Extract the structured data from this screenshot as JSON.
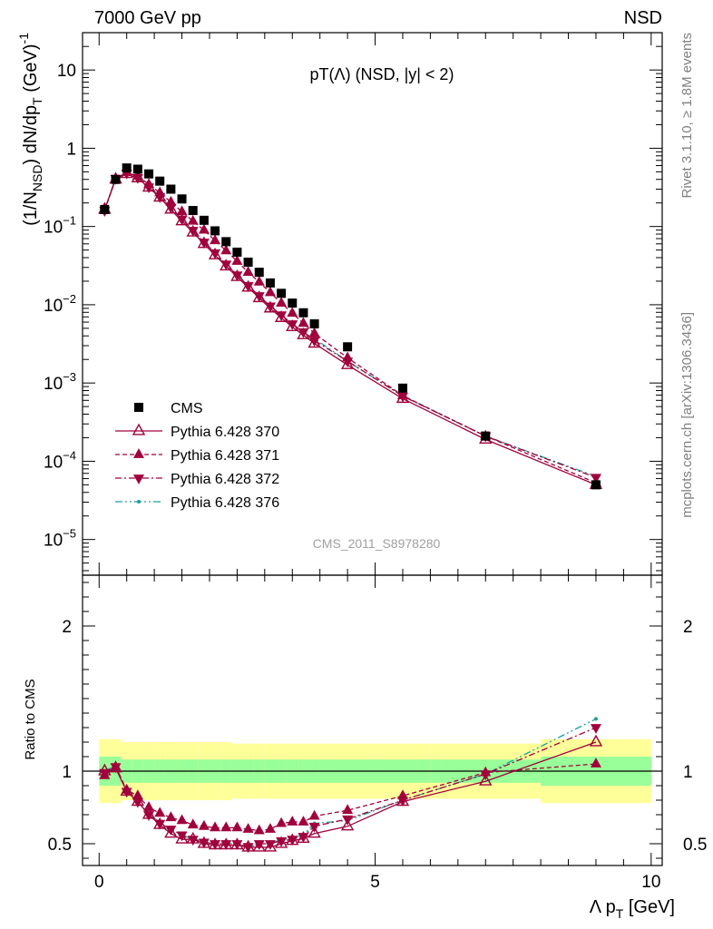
{
  "header": {
    "left": "7000 GeV pp",
    "right": "NSD"
  },
  "side_labels": {
    "rivet": "Rivet 3.1.10, ≥ 1.8M events",
    "mcplots": "mcplots.cern.ch [arXiv:1306.3436]"
  },
  "watermark": "CMS_2011_S8978280",
  "colors": {
    "cms": "#000000",
    "mc": "#a0003c",
    "mc376": "#1aa19a",
    "band_stat": "#99ff99",
    "band_total": "#ffff99"
  },
  "chart_data": [
    {
      "type": "scatter",
      "panel": "main",
      "title": "pT(Λ) (NSD, |y| < 2)",
      "ylabel_parts": {
        "base": "(1/N",
        "sub": "NSD",
        "mid": ") dN/dp",
        "sub2": "T",
        "unit": " (GeV)",
        "sup": "-1"
      },
      "yscale": "log",
      "ylim": [
        3.5e-06,
        30
      ],
      "xlim": [
        -0.3,
        10.2
      ],
      "yticks": [
        {
          "value": 10,
          "label": "10"
        },
        {
          "value": 1,
          "label": "1"
        },
        {
          "value": 0.1,
          "label": "10",
          "sup": "−1"
        },
        {
          "value": 0.01,
          "label": "10",
          "sup": "−2"
        },
        {
          "value": 0.001,
          "label": "10",
          "sup": "−3"
        },
        {
          "value": 0.0001,
          "label": "10",
          "sup": "−4"
        },
        {
          "value": 1e-05,
          "label": "10",
          "sup": "−5"
        }
      ],
      "series": [
        {
          "name": "CMS",
          "marker": "square",
          "x": [
            0.1,
            0.3,
            0.5,
            0.7,
            0.9,
            1.1,
            1.3,
            1.5,
            1.7,
            1.9,
            2.1,
            2.3,
            2.5,
            2.7,
            2.9,
            3.1,
            3.3,
            3.5,
            3.7,
            3.9,
            4.5,
            5.5,
            7.0,
            9.0
          ],
          "y": [
            0.165,
            0.4,
            0.56,
            0.54,
            0.47,
            0.38,
            0.3,
            0.225,
            0.16,
            0.12,
            0.088,
            0.064,
            0.047,
            0.035,
            0.026,
            0.019,
            0.014,
            0.0105,
            0.0079,
            0.0057,
            0.0029,
            0.00086,
            0.00021,
            5e-05
          ]
        },
        {
          "name": "Pythia 6.428 370",
          "marker": "triangle-open",
          "x": [
            0.1,
            0.3,
            0.5,
            0.7,
            0.9,
            1.1,
            1.3,
            1.5,
            1.7,
            1.9,
            2.1,
            2.3,
            2.5,
            2.7,
            2.9,
            3.1,
            3.3,
            3.5,
            3.7,
            3.9,
            4.5,
            5.5,
            7.0,
            9.0
          ],
          "y": [
            0.165,
            0.4,
            0.47,
            0.415,
            0.315,
            0.235,
            0.165,
            0.117,
            0.084,
            0.06,
            0.043,
            0.031,
            0.0227,
            0.0166,
            0.0122,
            0.009,
            0.0068,
            0.0052,
            0.0041,
            0.0032,
            0.0017,
            0.00063,
            0.00019,
            5e-05
          ]
        },
        {
          "name": "Pythia 6.428 371",
          "marker": "triangle-up",
          "x": [
            0.1,
            0.3,
            0.5,
            0.7,
            0.9,
            1.1,
            1.3,
            1.5,
            1.7,
            1.9,
            2.1,
            2.3,
            2.5,
            2.7,
            2.9,
            3.1,
            3.3,
            3.5,
            3.7,
            3.9,
            4.5,
            5.5,
            7.0,
            9.0
          ],
          "y": [
            0.16,
            0.41,
            0.49,
            0.44,
            0.345,
            0.27,
            0.205,
            0.155,
            0.117,
            0.09,
            0.066,
            0.049,
            0.036,
            0.026,
            0.0195,
            0.0143,
            0.0105,
            0.0078,
            0.0058,
            0.0043,
            0.0021,
            0.00069,
            0.00021,
            5.3e-05
          ]
        },
        {
          "name": "Pythia 6.428 372",
          "marker": "triangle-down",
          "x": [
            0.1,
            0.3,
            0.5,
            0.7,
            0.9,
            1.1,
            1.3,
            1.5,
            1.7,
            1.9,
            2.1,
            2.3,
            2.5,
            2.7,
            2.9,
            3.1,
            3.3,
            3.5,
            3.7,
            3.9,
            4.5,
            5.5,
            7.0,
            9.0
          ],
          "y": [
            0.16,
            0.41,
            0.48,
            0.42,
            0.32,
            0.24,
            0.175,
            0.124,
            0.089,
            0.063,
            0.046,
            0.033,
            0.024,
            0.0175,
            0.013,
            0.0096,
            0.0074,
            0.0057,
            0.0045,
            0.0035,
            0.0019,
            0.00068,
            0.00021,
            6.2e-05
          ]
        },
        {
          "name": "Pythia 6.428 376",
          "marker": "dot",
          "x": [
            0.1,
            0.3,
            0.5,
            0.7,
            0.9,
            1.1,
            1.3,
            1.5,
            1.7,
            1.9,
            2.1,
            2.3,
            2.5,
            2.7,
            2.9,
            3.1,
            3.3,
            3.5,
            3.7,
            3.9,
            4.5,
            5.5,
            7.0,
            9.0
          ],
          "y": [
            0.165,
            0.42,
            0.48,
            0.42,
            0.33,
            0.245,
            0.17,
            0.122,
            0.086,
            0.061,
            0.044,
            0.032,
            0.0235,
            0.0168,
            0.0128,
            0.0095,
            0.0074,
            0.0057,
            0.0044,
            0.0037,
            0.0019,
            0.00068,
            0.00021,
            6.4e-05
          ]
        }
      ]
    },
    {
      "type": "line",
      "panel": "ratio",
      "ylabel": "Ratio to CMS",
      "xlabel": "Λ p",
      "xlabel_sub": "T",
      "xlabel_unit": " [GeV]",
      "xlim": [
        -0.3,
        10.2
      ],
      "ylim": [
        0.35,
        2.35
      ],
      "xticks": [
        {
          "value": 0,
          "label": "0"
        },
        {
          "value": 5,
          "label": "5"
        },
        {
          "value": 10,
          "label": "10"
        }
      ],
      "yticks": [
        {
          "value": 0.5,
          "label": "0.5"
        },
        {
          "value": 1,
          "label": "1"
        },
        {
          "value": 2,
          "label": "2"
        }
      ],
      "bands": {
        "edges": [
          0,
          0.2,
          0.4,
          0.6,
          0.8,
          1.0,
          1.2,
          1.4,
          1.6,
          1.8,
          2.0,
          2.2,
          2.4,
          2.6,
          2.8,
          3.0,
          3.2,
          3.4,
          3.6,
          3.8,
          4.0,
          5.0,
          6.0,
          8.0,
          10.0
        ],
        "stat": [
          0.1,
          0.1,
          0.08,
          0.08,
          0.08,
          0.08,
          0.08,
          0.08,
          0.08,
          0.08,
          0.08,
          0.08,
          0.08,
          0.08,
          0.08,
          0.08,
          0.08,
          0.08,
          0.08,
          0.08,
          0.08,
          0.08,
          0.08,
          0.1
        ],
        "total": [
          0.22,
          0.22,
          0.2,
          0.2,
          0.2,
          0.2,
          0.2,
          0.2,
          0.2,
          0.2,
          0.2,
          0.2,
          0.19,
          0.19,
          0.19,
          0.19,
          0.19,
          0.19,
          0.19,
          0.19,
          0.19,
          0.19,
          0.19,
          0.22
        ]
      },
      "series": [
        {
          "name": "Pythia 6.428 370",
          "x": [
            0.1,
            0.3,
            0.5,
            0.7,
            0.9,
            1.1,
            1.3,
            1.5,
            1.7,
            1.9,
            2.1,
            2.3,
            2.5,
            2.7,
            2.9,
            3.1,
            3.3,
            3.5,
            3.7,
            3.9,
            4.5,
            5.5,
            7.0,
            9.0
          ],
          "y": [
            1.0,
            1.02,
            0.86,
            0.79,
            0.7,
            0.63,
            0.57,
            0.53,
            0.53,
            0.5,
            0.49,
            0.49,
            0.49,
            0.475,
            0.475,
            0.475,
            0.5,
            0.52,
            0.535,
            0.57,
            0.62,
            0.79,
            0.93,
            1.2
          ]
        },
        {
          "name": "Pythia 6.428 371",
          "x": [
            0.1,
            0.3,
            0.5,
            0.7,
            0.9,
            1.1,
            1.3,
            1.5,
            1.7,
            1.9,
            2.1,
            2.3,
            2.5,
            2.7,
            2.9,
            3.1,
            3.3,
            3.5,
            3.7,
            3.9,
            4.5,
            5.5,
            7.0,
            9.0
          ],
          "y": [
            0.97,
            1.03,
            0.87,
            0.83,
            0.75,
            0.71,
            0.68,
            0.66,
            0.63,
            0.62,
            0.61,
            0.61,
            0.61,
            0.6,
            0.59,
            0.6,
            0.64,
            0.65,
            0.65,
            0.69,
            0.73,
            0.83,
            0.99,
            1.05
          ]
        },
        {
          "name": "Pythia 6.428 372",
          "x": [
            0.1,
            0.3,
            0.5,
            0.7,
            0.9,
            1.1,
            1.3,
            1.5,
            1.7,
            1.9,
            2.1,
            2.3,
            2.5,
            2.7,
            2.9,
            3.1,
            3.3,
            3.5,
            3.7,
            3.9,
            4.5,
            5.5,
            7.0,
            9.0
          ],
          "y": [
            0.99,
            1.03,
            0.86,
            0.79,
            0.7,
            0.64,
            0.6,
            0.56,
            0.53,
            0.51,
            0.5,
            0.5,
            0.5,
            0.48,
            0.5,
            0.5,
            0.52,
            0.53,
            0.55,
            0.62,
            0.67,
            0.8,
            0.98,
            1.3
          ]
        },
        {
          "name": "Pythia 6.428 376",
          "x": [
            0.1,
            0.3,
            0.5,
            0.7,
            0.9,
            1.1,
            1.3,
            1.5,
            1.7,
            1.9,
            2.1,
            2.3,
            2.5,
            2.7,
            2.9,
            3.1,
            3.3,
            3.5,
            3.7,
            3.9,
            4.5,
            5.5,
            7.0,
            9.0
          ],
          "y": [
            1.0,
            1.04,
            0.86,
            0.79,
            0.7,
            0.65,
            0.58,
            0.55,
            0.54,
            0.51,
            0.5,
            0.5,
            0.5,
            0.47,
            0.5,
            0.5,
            0.53,
            0.54,
            0.56,
            0.64,
            0.66,
            0.8,
            0.98,
            1.36
          ]
        }
      ]
    }
  ]
}
